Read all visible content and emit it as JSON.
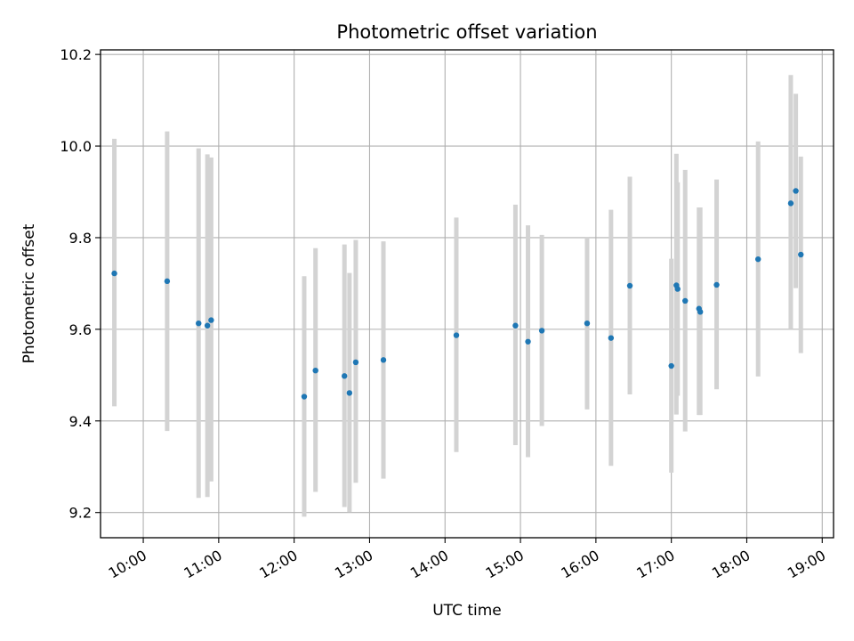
{
  "chart_data": {
    "type": "scatter",
    "title": "Photometric offset variation",
    "xlabel": "UTC time",
    "ylabel": "Photometric offset",
    "x_unit": "UTC time (HH:MM)",
    "xlim": [
      "09:26",
      "19:09"
    ],
    "ylim": [
      9.145,
      10.21
    ],
    "x_ticks": [
      "10:00",
      "11:00",
      "12:00",
      "13:00",
      "14:00",
      "15:00",
      "16:00",
      "17:00",
      "18:00",
      "19:00"
    ],
    "y_ticks": [
      "9.2",
      "9.4",
      "9.6",
      "9.8",
      "10.0",
      "10.2"
    ],
    "grid": true,
    "marker_color": "#1f77b4",
    "errorbar_color": "#d3d3d3",
    "points": [
      {
        "x": "09:37",
        "y": 9.722,
        "low": 9.432,
        "high": 10.016
      },
      {
        "x": "10:19",
        "y": 9.705,
        "low": 9.378,
        "high": 10.032
      },
      {
        "x": "10:44",
        "y": 9.613,
        "low": 9.232,
        "high": 9.995
      },
      {
        "x": "10:51",
        "y": 9.608,
        "low": 9.234,
        "high": 9.982
      },
      {
        "x": "10:54",
        "y": 9.62,
        "low": 9.268,
        "high": 9.975
      },
      {
        "x": "12:08",
        "y": 9.453,
        "low": 9.191,
        "high": 9.716
      },
      {
        "x": "12:17",
        "y": 9.51,
        "low": 9.245,
        "high": 9.777
      },
      {
        "x": "12:40",
        "y": 9.498,
        "low": 9.212,
        "high": 9.785
      },
      {
        "x": "12:44",
        "y": 9.461,
        "low": 9.201,
        "high": 9.723
      },
      {
        "x": "12:49",
        "y": 9.528,
        "low": 9.265,
        "high": 9.795
      },
      {
        "x": "13:11",
        "y": 9.533,
        "low": 9.274,
        "high": 9.792
      },
      {
        "x": "14:09",
        "y": 9.587,
        "low": 9.332,
        "high": 9.844
      },
      {
        "x": "14:56",
        "y": 9.608,
        "low": 9.347,
        "high": 9.872
      },
      {
        "x": "15:06",
        "y": 9.573,
        "low": 9.321,
        "high": 9.827
      },
      {
        "x": "15:17",
        "y": 9.597,
        "low": 9.389,
        "high": 9.806
      },
      {
        "x": "15:53",
        "y": 9.613,
        "low": 9.425,
        "high": 9.802
      },
      {
        "x": "16:12",
        "y": 9.581,
        "low": 9.302,
        "high": 9.861
      },
      {
        "x": "16:27",
        "y": 9.695,
        "low": 9.458,
        "high": 9.933
      },
      {
        "x": "17:00",
        "y": 9.52,
        "low": 9.287,
        "high": 9.754
      },
      {
        "x": "17:04",
        "y": 9.696,
        "low": 9.414,
        "high": 9.983
      },
      {
        "x": "17:05",
        "y": 9.688,
        "low": 9.455,
        "high": 9.921
      },
      {
        "x": "17:11",
        "y": 9.662,
        "low": 9.377,
        "high": 9.948
      },
      {
        "x": "17:22",
        "y": 9.645,
        "low": 9.413,
        "high": 9.866
      },
      {
        "x": "17:23",
        "y": 9.638,
        "low": 9.413,
        "high": 9.866
      },
      {
        "x": "17:36",
        "y": 9.697,
        "low": 9.469,
        "high": 9.927
      },
      {
        "x": "18:09",
        "y": 9.753,
        "low": 9.497,
        "high": 10.01
      },
      {
        "x": "18:35",
        "y": 9.875,
        "low": 9.6,
        "high": 10.155
      },
      {
        "x": "18:39",
        "y": 9.902,
        "low": 9.69,
        "high": 10.114
      },
      {
        "x": "18:43",
        "y": 9.763,
        "low": 9.548,
        "high": 9.977
      }
    ]
  }
}
